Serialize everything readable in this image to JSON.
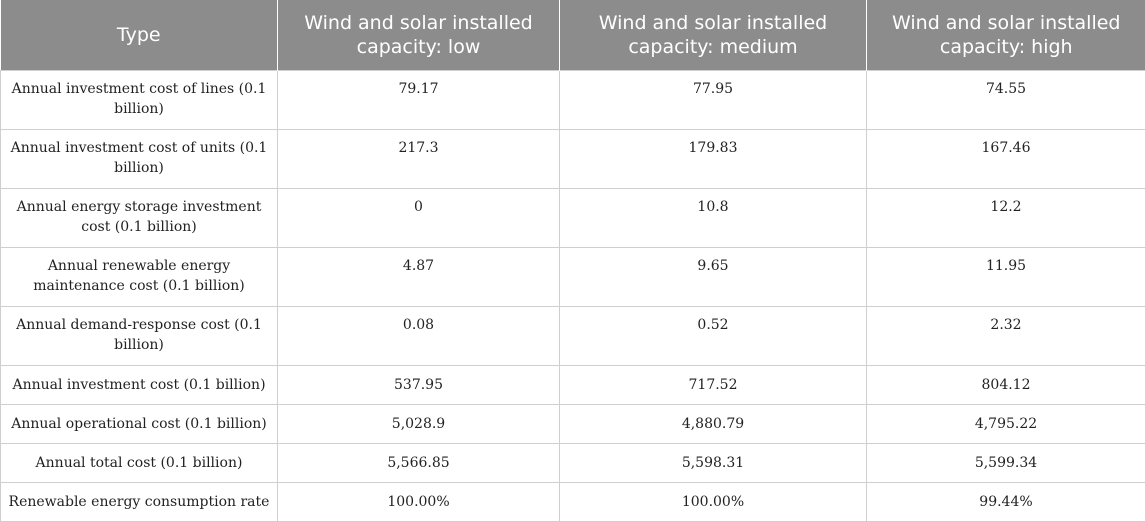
{
  "table": {
    "headers": [
      "Type",
      "Wind and solar installed capacity: low",
      "Wind and solar installed capacity: medium",
      "Wind and solar installed capacity: high"
    ],
    "rows": [
      {
        "label": "Annual investment cost of lines (0.1 billion)",
        "low": "79.17",
        "medium": "77.95",
        "high": "74.55"
      },
      {
        "label": "Annual investment cost of units (0.1 billion)",
        "low": "217.3",
        "medium": "179.83",
        "high": "167.46"
      },
      {
        "label": "Annual energy storage investment cost (0.1 billion)",
        "low": "0",
        "medium": "10.8",
        "high": "12.2"
      },
      {
        "label": "Annual renewable energy maintenance cost (0.1 billion)",
        "low": "4.87",
        "medium": "9.65",
        "high": "11.95"
      },
      {
        "label": "Annual demand-response cost (0.1 billion)",
        "low": "0.08",
        "medium": "0.52",
        "high": "2.32"
      },
      {
        "label": "Annual investment cost (0.1 billion)",
        "low": "537.95",
        "medium": "717.52",
        "high": "804.12"
      },
      {
        "label": "Annual operational cost (0.1 billion)",
        "low": "5,028.9",
        "medium": "4,880.79",
        "high": "4,795.22"
      },
      {
        "label": "Annual total cost (0.1 billion)",
        "low": "5,566.85",
        "medium": "5,598.31",
        "high": "5,599.34"
      },
      {
        "label": "Renewable energy consumption rate",
        "low": "100.00%",
        "medium": "100.00%",
        "high": "99.44%"
      }
    ]
  },
  "colors": {
    "header_bg": "#8c8c8c",
    "header_text": "#ffffff",
    "grid": "#cfcfcf"
  }
}
